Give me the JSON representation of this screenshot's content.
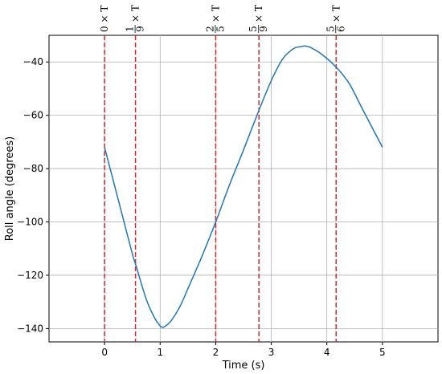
{
  "chart_data": {
    "type": "line",
    "xlabel": "Time (s)",
    "ylabel": "Roll angle (degrees)",
    "xlim": [
      -1,
      6
    ],
    "ylim": [
      -145,
      -30
    ],
    "x_ticks": [
      0,
      1,
      2,
      3,
      4,
      5
    ],
    "y_ticks": [
      -140,
      -120,
      -100,
      -80,
      -60,
      -40
    ],
    "grid": true,
    "series": [
      {
        "color": "#1f77b4",
        "x": [
          0,
          0.25,
          0.5,
          0.56,
          0.75,
          0.9,
          1.0,
          1.05,
          1.1,
          1.2,
          1.35,
          1.5,
          1.75,
          2.0,
          2.25,
          2.5,
          2.78,
          3.0,
          3.2,
          3.4,
          3.55,
          3.6,
          3.7,
          3.9,
          4.17,
          4.4,
          4.6,
          4.8,
          5.0
        ],
        "y": [
          -72,
          -92,
          -112,
          -116,
          -129,
          -136,
          -139,
          -139.5,
          -139,
          -137,
          -132,
          -125,
          -113,
          -100,
          -86,
          -73,
          -58,
          -47,
          -39,
          -35,
          -34.2,
          -34,
          -34.5,
          -37,
          -42,
          -48,
          -56,
          -64,
          -72
        ]
      }
    ],
    "vlines": {
      "color": "#d62728",
      "style": "dashed",
      "x": [
        0,
        0.556,
        2.0,
        2.778,
        4.167
      ],
      "labels": [
        {
          "coef": "0"
        },
        {
          "num": "1",
          "den": "9"
        },
        {
          "num": "2",
          "den": "5"
        },
        {
          "num": "5",
          "den": "9"
        },
        {
          "num": "5",
          "den": "6"
        }
      ],
      "suffix": "× T"
    }
  }
}
